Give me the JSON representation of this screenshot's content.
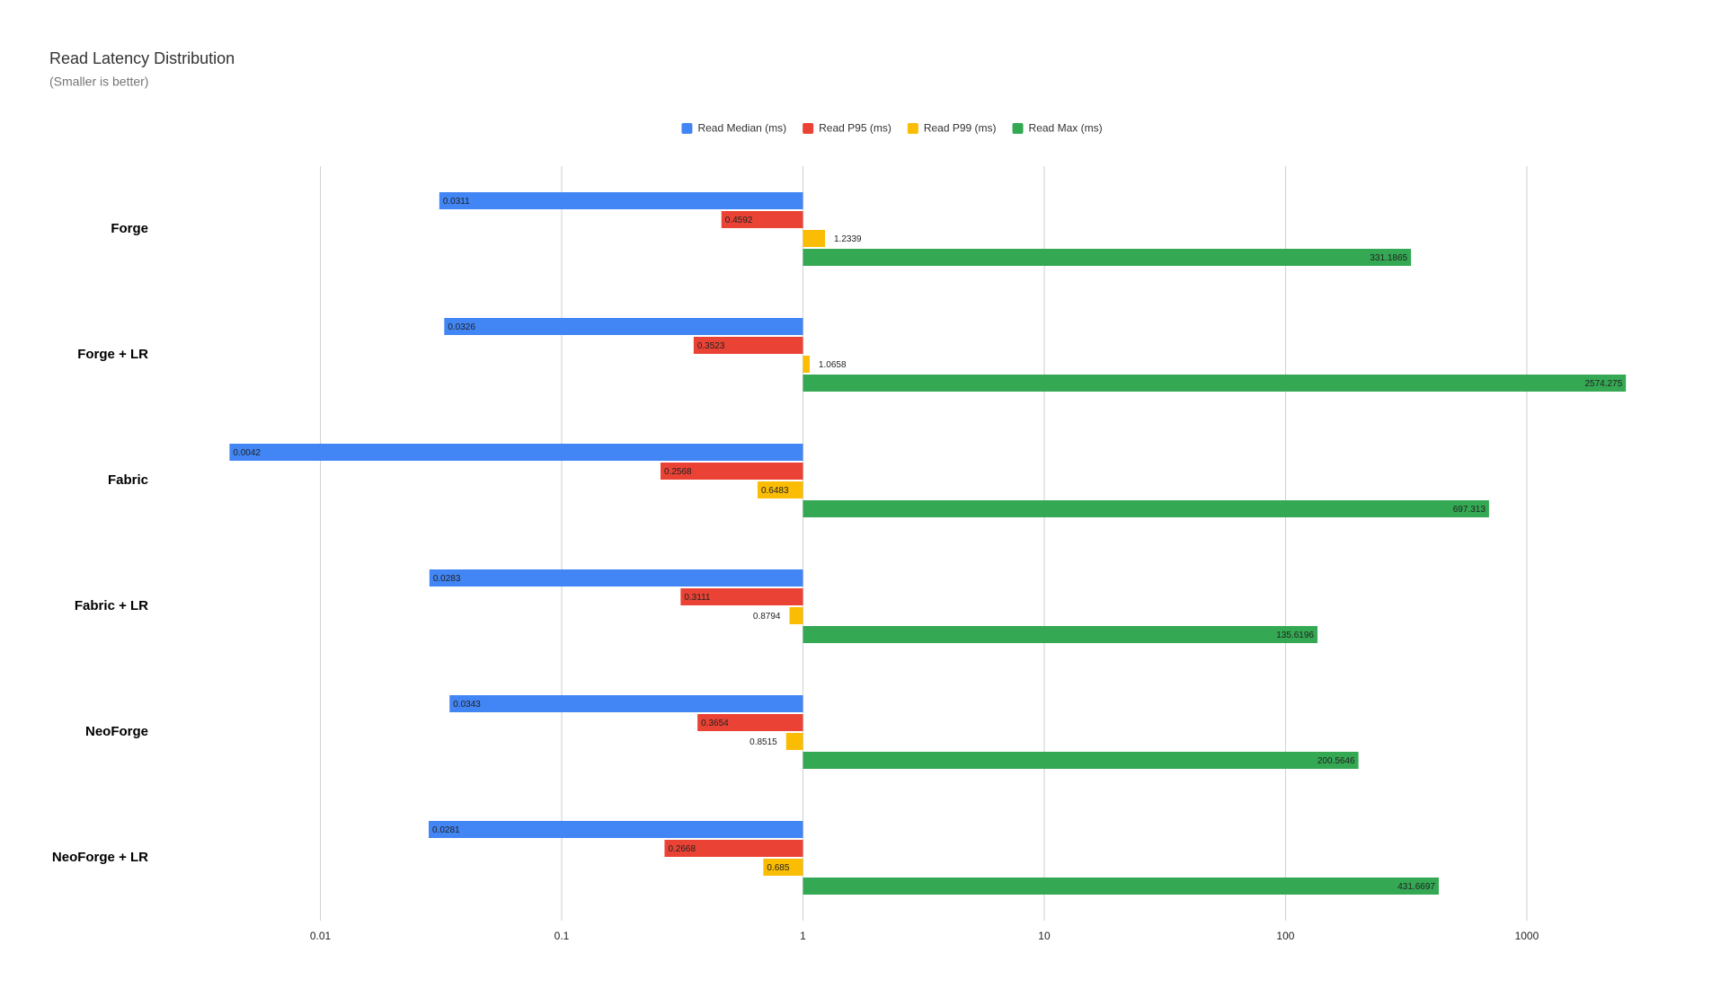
{
  "chart_data": {
    "type": "bar",
    "orientation": "horizontal",
    "title": "Read Latency Distribution",
    "subtitle": "(Smaller is better)",
    "categories": [
      "Forge",
      "Forge + LR",
      "Fabric",
      "Fabric + LR",
      "NeoForge",
      "NeoForge + LR"
    ],
    "series": [
      {
        "name": "Read Median (ms)",
        "color": "#4285f4",
        "values": [
          0.0311,
          0.0326,
          0.0042,
          0.0283,
          0.0343,
          0.0281
        ]
      },
      {
        "name": "Read P95 (ms)",
        "color": "#ea4335",
        "values": [
          0.4592,
          0.3523,
          0.2568,
          0.3111,
          0.3654,
          0.2668
        ]
      },
      {
        "name": "Read P99 (ms)",
        "color": "#fbbc04",
        "values": [
          1.2339,
          1.0658,
          0.6483,
          0.8794,
          0.8515,
          0.685
        ]
      },
      {
        "name": "Read Max (ms)",
        "color": "#34a853",
        "values": [
          331.1865,
          2574.275,
          697.313,
          135.6196,
          200.5646,
          431.6697
        ]
      }
    ],
    "xscale": "log",
    "xlim": [
      0.0022,
      3500
    ],
    "xticks": [
      0.01,
      0.1,
      1,
      10,
      100,
      1000
    ],
    "grid": true,
    "legend": "top"
  }
}
